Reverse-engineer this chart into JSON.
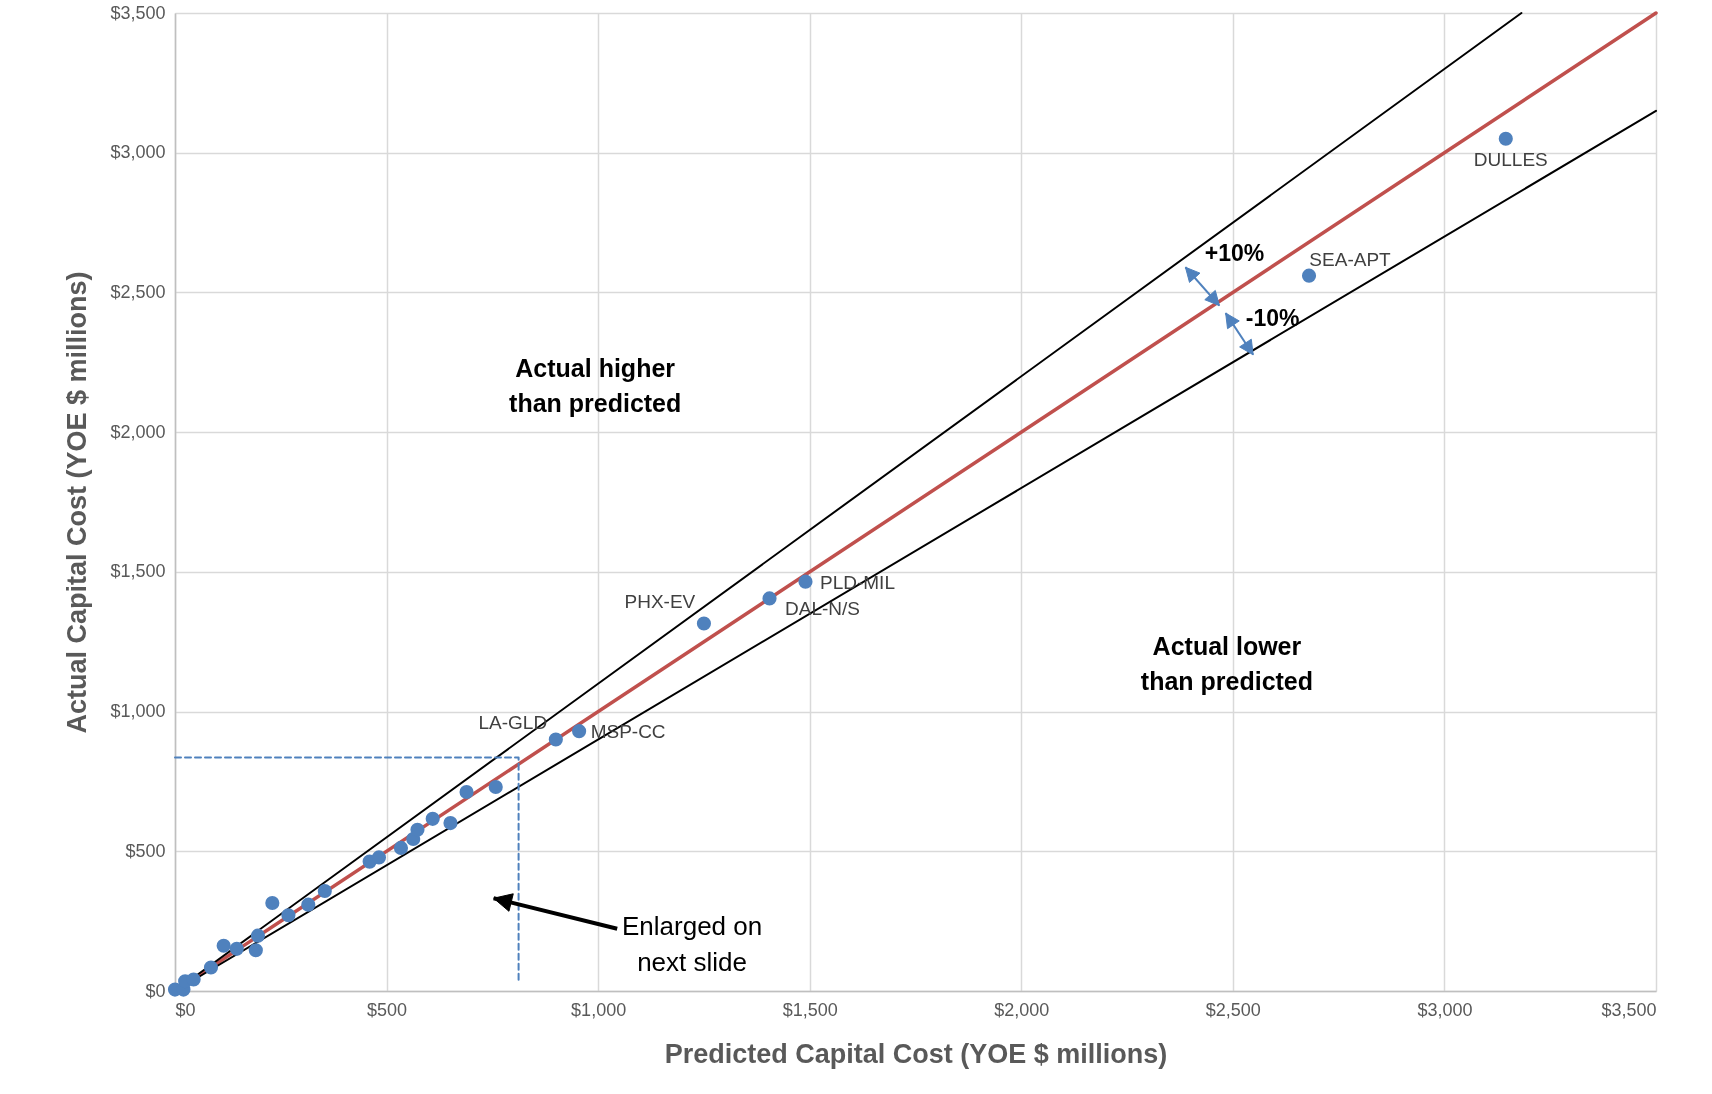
{
  "chart_data": {
    "type": "scatter",
    "xlabel": "Predicted Capital Cost (YOE $ millions)",
    "ylabel": "Actual Capital Cost (YOE $ millions)",
    "xlim": [
      0,
      3500
    ],
    "ylim": [
      0,
      3500
    ],
    "xticks": [
      {
        "value": 0,
        "label": "$0"
      },
      {
        "value": 500,
        "label": "$500"
      },
      {
        "value": 1000,
        "label": "$1,000"
      },
      {
        "value": 1500,
        "label": "$1,500"
      },
      {
        "value": 2000,
        "label": "$2,000"
      },
      {
        "value": 2500,
        "label": "$2,500"
      },
      {
        "value": 3000,
        "label": "$3,000"
      },
      {
        "value": 3500,
        "label": "$3,500"
      }
    ],
    "yticks": [
      {
        "value": 0,
        "label": "$0"
      },
      {
        "value": 500,
        "label": "$500"
      },
      {
        "value": 1000,
        "label": "$1,000"
      },
      {
        "value": 1500,
        "label": "$1,500"
      },
      {
        "value": 2000,
        "label": "$2,000"
      },
      {
        "value": 2500,
        "label": "$2,500"
      },
      {
        "value": 3000,
        "label": "$3,000"
      },
      {
        "value": 3500,
        "label": "$3,500"
      }
    ],
    "grid": true,
    "series": [
      {
        "color": "#4f81bd",
        "marker": "circle",
        "x": [
          0,
          20,
          24,
          44,
          85,
          115,
          146,
          191,
          196,
          230,
          268,
          315,
          354,
          460,
          482,
          534,
          563,
          573,
          609,
          651,
          689,
          758,
          900,
          955,
          1250,
          1405,
          1490,
          2680,
          3145
        ],
        "values": [
          5,
          5,
          35,
          41,
          84,
          162,
          151,
          146,
          198,
          315,
          271,
          309,
          358,
          463,
          478,
          512,
          544,
          577,
          616,
          601,
          712,
          730,
          900,
          930,
          1315,
          1405,
          1465,
          2560,
          3050
        ]
      },
      {
        "type": "line",
        "color": "#c0504d",
        "line_style": "solid",
        "x": [
          0,
          3500
        ],
        "values": [
          0,
          3500
        ]
      },
      {
        "type": "line",
        "color": "#000000",
        "line_style": "solid",
        "x": [
          0,
          3182
        ],
        "values": [
          0,
          3500
        ]
      },
      {
        "type": "line",
        "color": "#000000",
        "line_style": "solid",
        "x": [
          0,
          3500
        ],
        "values": [
          0,
          3150
        ]
      },
      {
        "type": "line",
        "color": "#4f81bd",
        "line_style": "dashed",
        "x": [
          0,
          812,
          812
        ],
        "values": [
          836,
          836,
          39
        ]
      }
    ],
    "annotations": [
      {
        "text": "DULLES",
        "x": 3145,
        "y": 3050
      },
      {
        "text": "SEA-APT",
        "x": 2680,
        "y": 2560
      },
      {
        "text": "PLD-MIL",
        "x": 1490,
        "y": 1465
      },
      {
        "text": "DAL-N/S",
        "x": 1405,
        "y": 1405
      },
      {
        "text": "PHX-EV",
        "x": 1250,
        "y": 1315
      },
      {
        "text": "MSP-CC",
        "x": 955,
        "y": 930
      },
      {
        "text": "LA-GLD",
        "x": 900,
        "y": 900
      },
      "Actual higher\nthan predicted",
      "Actual lower\nthan predicted",
      "+10%",
      "-10%",
      "Enlarged on\nnext slide"
    ]
  }
}
